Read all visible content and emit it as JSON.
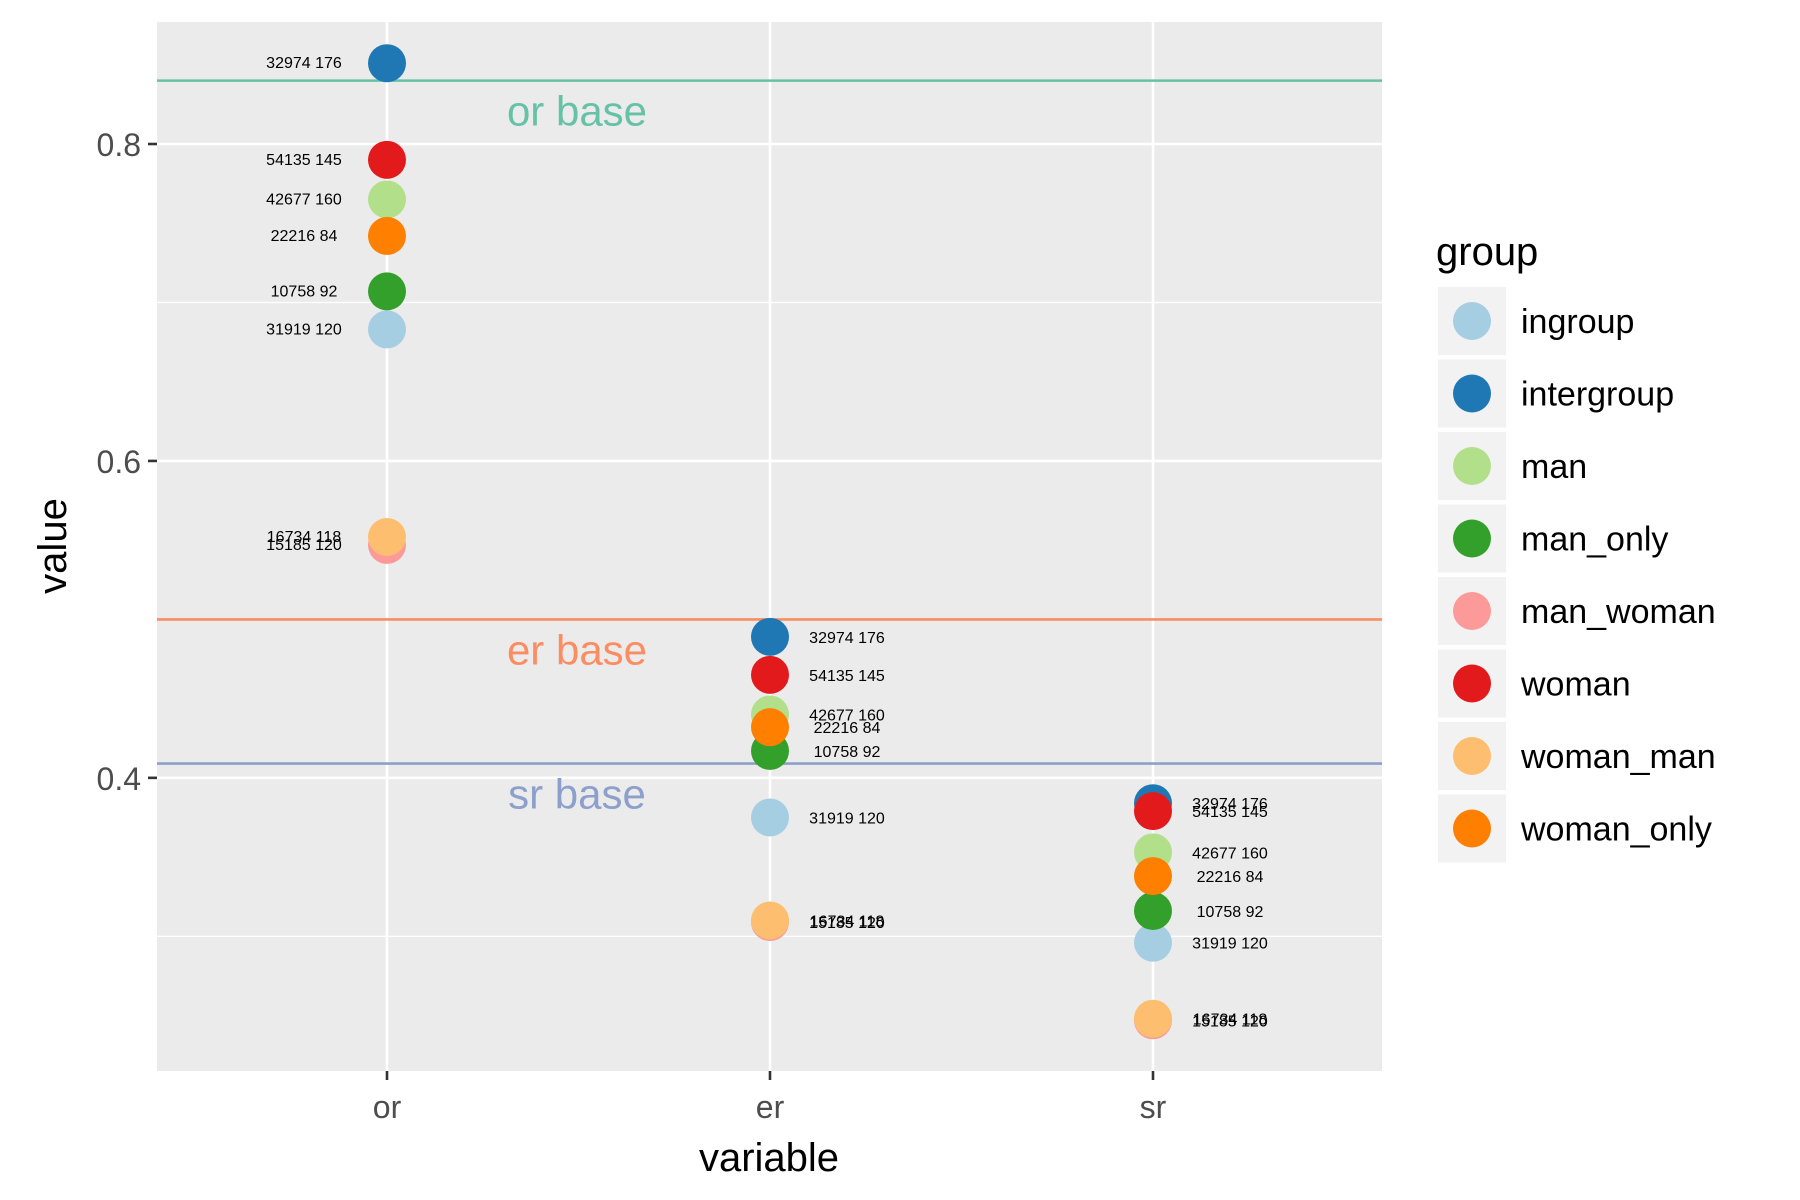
{
  "chart_data": {
    "type": "scatter",
    "title": "",
    "xlabel": "variable",
    "ylabel": "value",
    "categories": [
      "or",
      "er",
      "sr"
    ],
    "ylim": [
      0.215,
      0.877
    ],
    "yticks": [
      0.4,
      0.6,
      0.8
    ],
    "ytick_labels": [
      "0.4",
      "0.6",
      "0.8"
    ],
    "grid": true,
    "legend": {
      "title": "group",
      "placement": "right"
    },
    "reference_lines": [
      {
        "label": "or base",
        "value": 0.84,
        "color": "#66c2a5"
      },
      {
        "label": "er base",
        "value": 0.5,
        "color": "#fc8d62"
      },
      {
        "label": "sr base",
        "value": 0.409,
        "color": "#8da0cb"
      }
    ],
    "series": [
      {
        "name": "ingroup",
        "color": "#a6cee3",
        "label": "31919 120",
        "values": [
          0.683,
          0.375,
          0.296
        ]
      },
      {
        "name": "intergroup",
        "color": "#1f78b4",
        "label": "32974 176",
        "values": [
          0.851,
          0.489,
          0.384
        ]
      },
      {
        "name": "man",
        "color": "#b2df8a",
        "label": "42677 160",
        "values": [
          0.765,
          0.44,
          0.353
        ]
      },
      {
        "name": "man_only",
        "color": "#33a02c",
        "label": "10758 92",
        "values": [
          0.707,
          0.417,
          0.316
        ]
      },
      {
        "name": "man_woman",
        "color": "#fb9a99",
        "label": "15185 120",
        "values": [
          0.547,
          0.309,
          0.247
        ]
      },
      {
        "name": "woman",
        "color": "#e31a1c",
        "label": "54135 145",
        "values": [
          0.79,
          0.465,
          0.379
        ]
      },
      {
        "name": "woman_man",
        "color": "#fdbf6f",
        "label": "16734 118",
        "values": [
          0.552,
          0.31,
          0.248
        ]
      },
      {
        "name": "woman_only",
        "color": "#ff7f00",
        "label": "22216 84",
        "values": [
          0.742,
          0.432,
          0.338
        ]
      }
    ]
  }
}
